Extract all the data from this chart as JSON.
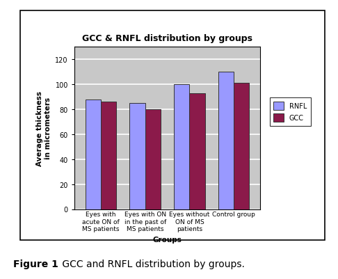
{
  "title": "GCC & RNFL distribution by groups",
  "categories": [
    "Eyes with\nacute ON of\nMS patients",
    "Eyes with ON\nin the past of\nMS patients",
    "Eyes without\nON of MS\npatients",
    "Control group"
  ],
  "rnfl_values": [
    88,
    85,
    100,
    110
  ],
  "gcc_values": [
    86,
    80,
    93,
    101
  ],
  "rnfl_color": "#9999FF",
  "gcc_color": "#8B1A4A",
  "ylabel": "Average thickness\nin micrometers",
  "xlabel": "Groups",
  "ylim": [
    0,
    130
  ],
  "yticks": [
    0,
    20,
    40,
    60,
    80,
    100,
    120
  ],
  "legend_labels": [
    "RNFL",
    "GCC"
  ],
  "bg_color": "#C8C8C8",
  "caption_bold": "Figure 1",
  "caption_normal": " GCC and RNFL distribution by groups.",
  "bar_width": 0.35,
  "grid_color": "#FFFFFF",
  "border_color": "#C8A0C8",
  "title_fontsize": 9,
  "axis_label_fontsize": 7.5,
  "tick_fontsize": 6.5,
  "legend_fontsize": 7,
  "caption_fontsize": 10
}
